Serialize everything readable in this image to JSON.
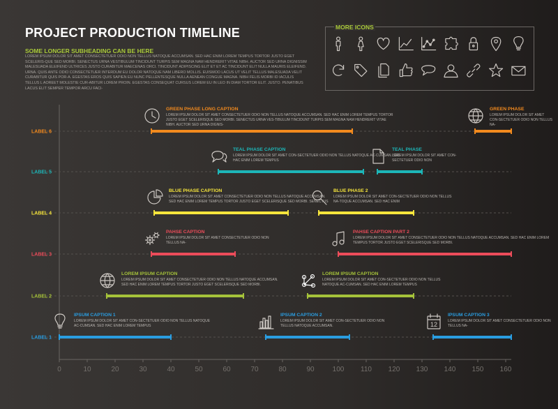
{
  "header": {
    "title": "PROJECT PRODUCTION TIMELINE",
    "subheading": "SOME LONGER SUBHEADING CAN BE HERE",
    "intro": "LOREM IPSUM DOLOR SIT AMET CONSECTETUER ODIO NON TELLUS NATOQUE ACCUMSAN. SED HAC ENIM LOREM TEMPUS TORTOR JUSTO EGET SCELERIS-QUE SED MORBI. SENECTUS URNA VESTIBULUM TINCIDUNT TURPIS SEM MAGNA NAM HENDRERIT VITAE NIBH. AUCTOR SED URNA DIGNISSIM MALESUADA ELEIFEND ULTRICES JUSTO CURABITUR MAECENAS ORCI. TINCIDUNT ADIPISCING ELIT ET ET AC TINCIDUNT ELIT NULLA MAURIS ELEIFEND. URNA. QUIS ANTE ODIO CONSECTETUER INTERDUM EU DOLOR NATOQUE NAM LIBERO MOLLIS. EUISMOD LACUS UT VELIT TELLUS MALESUADA VELIT CURABITUR QUIS POR-A. EGESTAS EROS QUIS SAPIEN EU NUNC PELLENTESQUE NULLA AENEAN CONGUE MAGNA. NIBH FELIS MORBI ID IACULIS TELLUS L AOREET MOLESTIE CUR-ABITUR LOREM PROIN. EGESTAS CONSEQUAT CURSUS LOREM EU IN LEO IN DIAM TORTOR ELIT. JUSTO. PENATIBUS LACUS ELIT SEMPER TEMPOR ARCU FACI-"
  },
  "icons_panel": {
    "title": "MORE ICONS",
    "icons": [
      "man-icon",
      "woman-icon",
      "heart-icon",
      "line-chart-icon",
      "scatter-chart-icon",
      "puzzle-icon",
      "lock-icon",
      "location-pin-icon",
      "lightbulb-icon",
      "refresh-icon",
      "tag-icon",
      "documents-icon",
      "thumbs-up-icon",
      "speech-bubble-icon",
      "user-icon",
      "link-icon",
      "star-icon",
      "envelope-icon"
    ]
  },
  "colors": {
    "orange": "#f28a1e",
    "teal": "#1db6b8",
    "yellow": "#f6e53c",
    "red": "#ec4c5a",
    "green": "#a5c23a",
    "blue": "#2a9de0",
    "axis": "#6a6663",
    "muted_text": "#b9b5b1"
  },
  "chart_data": {
    "type": "timeline",
    "xlim": [
      0,
      162
    ],
    "xticks": [
      0,
      10,
      20,
      30,
      40,
      50,
      60,
      70,
      80,
      90,
      100,
      110,
      120,
      130,
      140,
      150,
      160
    ],
    "tick_labels": [
      "0",
      "10",
      "20",
      "30",
      "40",
      "50",
      "60",
      "70",
      "80",
      "90",
      "100",
      "110",
      "120",
      "130",
      "140",
      "150",
      "160"
    ],
    "lanes": [
      {
        "label": "LABEL 6",
        "color": "#f28a1e",
        "phases": [
          {
            "start": 33,
            "end": 105,
            "icon": "clock-icon",
            "caption": "GREEN PHASE LONG CAPTION",
            "text": "LOREM IPSUM DOLOR SIT AMET CONSECTETUER ODIO NON TELLUS NATOQUE ACCUMSAN. SED HAC ENIM LOREM TEMPUS TORTOR JUSTO EGET SCELERISQUE SED MORBI. SENECTUS URNA VES-TIBULUM TINCIDUNT TURPIS SEM MAGNA NAM HENDRERIT VITAE NIBH. AUCTOR SED URNA DIGNIS-"
          },
          {
            "start": 149,
            "end": 163,
            "icon": "globe-icon",
            "caption": "GREEN PHASE",
            "text": "LOREM IPSUM DOLOR SIT AMET CON-SECTETUER ODIO NON TELLUS NA-"
          }
        ]
      },
      {
        "label": "LABEL 5",
        "color": "#1db6b8",
        "phases": [
          {
            "start": 57,
            "end": 109,
            "icon": "chat-icon",
            "caption": "TEAL PHASE CAPTION",
            "text": "LOREM IPSUM DOLOR SIT AMET CON-SECTETUER ODIO NON TELLUS NATOQUE AC-CUMSAN. SED HAC ENIM LOREM TEMPUS"
          },
          {
            "start": 114,
            "end": 130,
            "icon": "document-icon",
            "caption": "TEAL PHASE",
            "text": "LOREM IPSUM DOLOR SIT AMET CON-SECTETUER ODIO NON"
          }
        ]
      },
      {
        "label": "LABEL 4",
        "color": "#f6e53c",
        "phases": [
          {
            "start": 34,
            "end": 82,
            "icon": "pie-chart-icon",
            "caption": "BLUE PHASE CAPTION",
            "text": "LOREM IPSUM DOLOR SIT AMET CONSECTETUER ODIO NON TELLUS NATOQUE ACCUMSAN. SED HAC ENIM LOREM TEMPUS TORTOR JUSTO EGET SCELERISQUE SED MORBI. SENECTUS"
          },
          {
            "start": 93,
            "end": 127,
            "icon": "magnifier-icon",
            "caption": "BLUE PHASE 2",
            "text": "LOREM IPSUM DOLOR SIT AMET CON-SECTETUER ODIO NON TELLUS NA-TOQUE ACCUMSAN. SED HAC ENIM"
          }
        ]
      },
      {
        "label": "LABEL 3",
        "color": "#ec4c5a",
        "phases": [
          {
            "start": 33,
            "end": 63,
            "icon": "gears-icon",
            "caption": "PAHSE CAPTION",
            "text": "LOREM IPSUM DOLOR SIT AMET CONSECTETUER ODIO NON TELLUS NA-"
          },
          {
            "start": 100,
            "end": 163,
            "icon": "music-note-icon",
            "caption": "PAHSE CAPTION PART 2",
            "text": "LOREM IPSUM DOLOR SIT AMET CONSECTETUER ODIO NON TELLUS NATOQUE ACCUMSAN. SED HAC ENIM LOREM TEMPUS TORTOR JUSTO EGET SCELERISQUE SED MORBI."
          }
        ]
      },
      {
        "label": "LABEL 2",
        "color": "#a5c23a",
        "phases": [
          {
            "start": 17,
            "end": 66,
            "icon": "globe-icon",
            "caption": "LOREM IPSUM CAPTION",
            "text": "LOREM IPSUM DOLOR SIT AMET CONSECTETUER ODIO NON TELLUS NATOQUE ACCUMSAN. SED HAC ENIM LOREM TEMPUS TORTOR JUSTO EGET SCELERISQUE SED MORBI."
          },
          {
            "start": 89,
            "end": 127,
            "icon": "network-icon",
            "caption": "LOREM IPSUM CAPTION",
            "text": "LOREM IPSUM DOLOR SIT AMET CON-SECTETUER ODIO NON TELLUS NATOQUE AC-CUMSAN. SED HAC ENIM LOREM TEMPUS"
          }
        ]
      },
      {
        "label": "LABEL 1",
        "color": "#2a9de0",
        "phases": [
          {
            "start": 0,
            "end": 40,
            "icon": "lightbulb-icon",
            "caption": "IPSUM CAPTION 1",
            "text": "LOREM IPSUM DOLOR SIT AMET CON-SECTETUER ODIO NON TELLUS NATOQUE AC-CUMSAN. SED HAC ENIM LOREM TEMPUS"
          },
          {
            "start": 74,
            "end": 104,
            "icon": "bar-chart-icon",
            "caption": "IPSUM CAPTION 2",
            "text": "LOREM IPSUM DOLOR SIT AMET CON-SECTETUER ODIO NON TELLUS NATOQUE ACCUMSAN."
          },
          {
            "start": 134,
            "end": 163,
            "icon": "calendar-icon",
            "caption": "IPSUM CAPTION 3",
            "text": "LOREM IPSUM DOLOR SIT AMET CONSECTETUER ODIO NON TELLUS NA-"
          }
        ]
      }
    ],
    "calendar_day": "12"
  }
}
